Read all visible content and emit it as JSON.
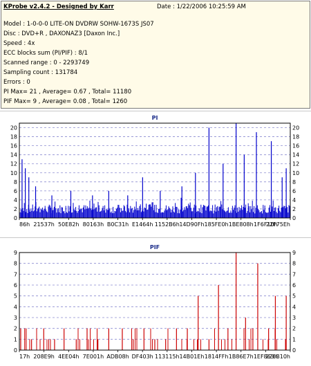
{
  "info": {
    "title": "KProbe v2.4.2 - Designed by Karr",
    "date": "Date : 1/22/2006 10:25:59 AM",
    "lines": [
      "Model : 1-0-0-0 LITE-ON DVDRW SOHW-1673S JS07",
      "Disc : DVD+R , DAXONAZ3 [Daxon Inc.]",
      "Speed : 4x",
      "ECC blocks sum (PI/PIF) : 8/1",
      "Scanned range : 0 - 2293749",
      "Sampling count : 131784",
      "Errors : 0",
      "PI Max= 21 , Average= 0.67 , Total= 11180",
      "PIF Max= 9 , Average= 0.08 , Total= 1260"
    ]
  },
  "chart_data": [
    {
      "type": "bar",
      "title": "PI",
      "ylim": [
        0,
        21
      ],
      "yticks": [
        0,
        2,
        4,
        6,
        8,
        10,
        12,
        14,
        16,
        18,
        20
      ],
      "xtick_labels": [
        "86h",
        "21537h",
        "50E82h",
        "80163h",
        "B0C31h",
        "E1464h",
        "1152B6h",
        "14D90Fh",
        "185FE0h",
        "1BE808h",
        "1F6F10h",
        "22F75Eh"
      ],
      "color": "#0000cc",
      "baseline": 2,
      "peaks": [
        {
          "x": 0.01,
          "y": 13
        },
        {
          "x": 0.022,
          "y": 11
        },
        {
          "x": 0.035,
          "y": 9
        },
        {
          "x": 0.06,
          "y": 7
        },
        {
          "x": 0.12,
          "y": 5
        },
        {
          "x": 0.19,
          "y": 6
        },
        {
          "x": 0.27,
          "y": 5
        },
        {
          "x": 0.33,
          "y": 6
        },
        {
          "x": 0.4,
          "y": 5
        },
        {
          "x": 0.455,
          "y": 9
        },
        {
          "x": 0.52,
          "y": 6
        },
        {
          "x": 0.6,
          "y": 7
        },
        {
          "x": 0.65,
          "y": 10
        },
        {
          "x": 0.7,
          "y": 20
        },
        {
          "x": 0.752,
          "y": 12
        },
        {
          "x": 0.8,
          "y": 21
        },
        {
          "x": 0.83,
          "y": 14
        },
        {
          "x": 0.875,
          "y": 19
        },
        {
          "x": 0.93,
          "y": 17
        },
        {
          "x": 0.97,
          "y": 9
        },
        {
          "x": 0.985,
          "y": 11
        }
      ]
    },
    {
      "type": "bar",
      "title": "PIF",
      "ylim": [
        0,
        9
      ],
      "yticks": [
        0,
        1,
        2,
        3,
        4,
        5,
        6,
        7,
        8,
        9
      ],
      "xtick_labels": [
        "17h",
        "208E9h",
        "4EE04h",
        "7E001h",
        "ADB08h",
        "DF403h",
        "113115h",
        "14B01Eh",
        "1814FFh",
        "1B86E7h",
        "1EF863h",
        "226B10h"
      ],
      "color": "#cc0000",
      "peaks": [
        {
          "x": 0.005,
          "y": 2
        },
        {
          "x": 0.02,
          "y": 2
        },
        {
          "x": 0.045,
          "y": 1
        },
        {
          "x": 0.09,
          "y": 2
        },
        {
          "x": 0.13,
          "y": 1
        },
        {
          "x": 0.165,
          "y": 2
        },
        {
          "x": 0.21,
          "y": 1
        },
        {
          "x": 0.25,
          "y": 2
        },
        {
          "x": 0.29,
          "y": 1
        },
        {
          "x": 0.33,
          "y": 2
        },
        {
          "x": 0.38,
          "y": 2
        },
        {
          "x": 0.42,
          "y": 1
        },
        {
          "x": 0.46,
          "y": 2
        },
        {
          "x": 0.5,
          "y": 1
        },
        {
          "x": 0.54,
          "y": 1
        },
        {
          "x": 0.58,
          "y": 2
        },
        {
          "x": 0.62,
          "y": 2
        },
        {
          "x": 0.66,
          "y": 5
        },
        {
          "x": 0.7,
          "y": 1
        },
        {
          "x": 0.735,
          "y": 6
        },
        {
          "x": 0.77,
          "y": 2
        },
        {
          "x": 0.8,
          "y": 9
        },
        {
          "x": 0.835,
          "y": 3
        },
        {
          "x": 0.862,
          "y": 2
        },
        {
          "x": 0.88,
          "y": 8
        },
        {
          "x": 0.92,
          "y": 2
        },
        {
          "x": 0.945,
          "y": 5
        },
        {
          "x": 0.985,
          "y": 5
        }
      ]
    }
  ]
}
